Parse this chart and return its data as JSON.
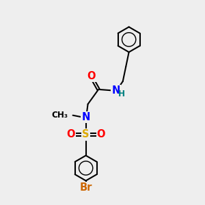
{
  "bg_color": "#eeeeee",
  "bond_color": "#000000",
  "atom_colors": {
    "O": "#ff0000",
    "N": "#0000ff",
    "H": "#008080",
    "S": "#ddaa00",
    "Br": "#cc6600",
    "C": "#000000"
  },
  "font_size": 10.5,
  "bond_width": 1.5,
  "hex_r": 0.62
}
